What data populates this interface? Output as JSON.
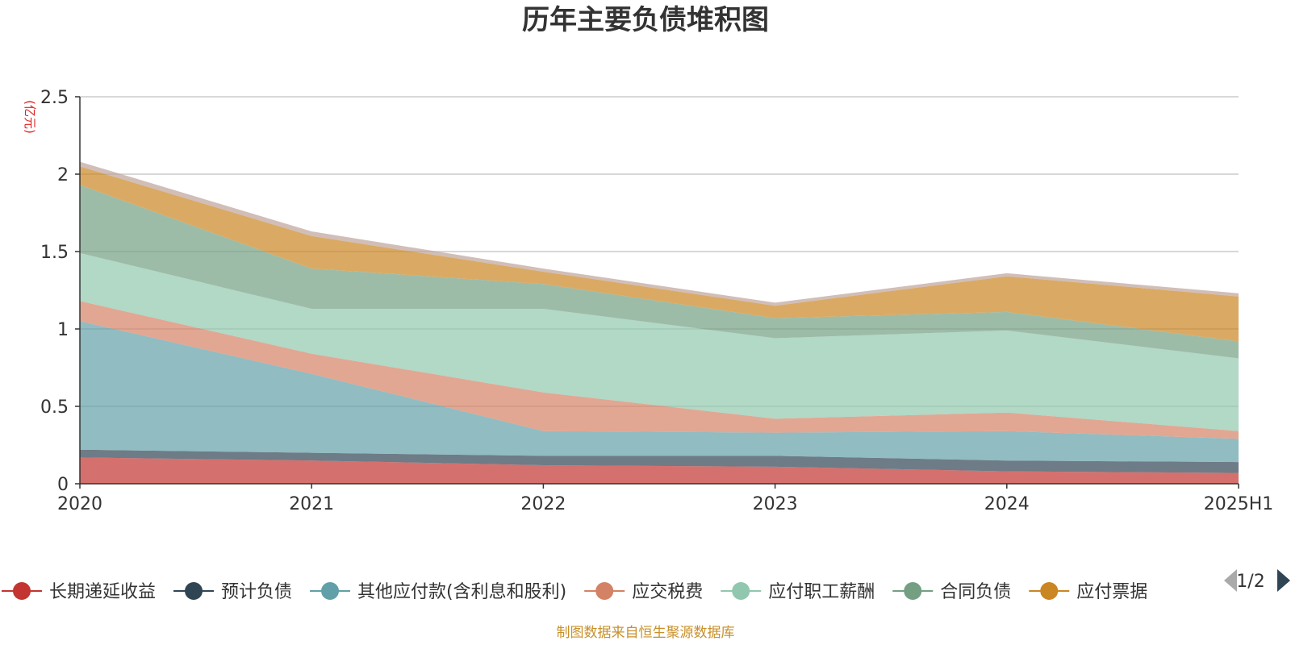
{
  "chart_data": {
    "type": "area",
    "stacked": true,
    "title": "历年主要负债堆积图",
    "unit": "(亿元)",
    "x": [
      "2020",
      "2021",
      "2022",
      "2023",
      "2024",
      "2025H1"
    ],
    "y_ticks": [
      "0",
      "0.5",
      "1",
      "1.5",
      "2",
      "2.5"
    ],
    "ylim": [
      0,
      2.5
    ],
    "grid": true,
    "series": [
      {
        "name": "长期递延收益",
        "color": "#c23531",
        "values": [
          0.17,
          0.15,
          0.12,
          0.11,
          0.08,
          0.07
        ]
      },
      {
        "name": "预计负债",
        "color": "#2f4554",
        "values": [
          0.05,
          0.05,
          0.06,
          0.07,
          0.07,
          0.07
        ]
      },
      {
        "name": "其他应付款(含利息和股利)",
        "color": "#61a0a8",
        "values": [
          0.83,
          0.51,
          0.16,
          0.15,
          0.19,
          0.15
        ]
      },
      {
        "name": "应交税费",
        "color": "#d48265",
        "values": [
          0.13,
          0.13,
          0.25,
          0.09,
          0.12,
          0.05
        ]
      },
      {
        "name": "应付职工薪酬",
        "color": "#91c7ae",
        "values": [
          0.31,
          0.29,
          0.54,
          0.52,
          0.53,
          0.47
        ]
      },
      {
        "name": "合同负债",
        "color": "#749f83",
        "values": [
          0.44,
          0.26,
          0.16,
          0.13,
          0.12,
          0.11
        ]
      },
      {
        "name": "应付票据",
        "color": "#ca8622",
        "values": [
          0.12,
          0.21,
          0.08,
          0.08,
          0.23,
          0.29
        ]
      },
      {
        "name": "",
        "color": "#bda29a",
        "values": [
          0.03,
          0.03,
          0.02,
          0.02,
          0.02,
          0.02
        ]
      }
    ]
  },
  "legend": {
    "items": [
      {
        "label": "长期递延收益",
        "color": "#c23531"
      },
      {
        "label": "预计负债",
        "color": "#2f4554"
      },
      {
        "label": "其他应付款(含利息和股利)",
        "color": "#61a0a8"
      },
      {
        "label": "应交税费",
        "color": "#d48265"
      },
      {
        "label": "应付职工薪酬",
        "color": "#91c7ae"
      },
      {
        "label": "合同负债",
        "color": "#749f83"
      },
      {
        "label": "应付票据",
        "color": "#ca8622"
      }
    ],
    "page": "1/2",
    "prev_icon": "triangle-left-icon",
    "next_icon": "triangle-right-icon"
  },
  "source": "制图数据来自恒生聚源数据库"
}
